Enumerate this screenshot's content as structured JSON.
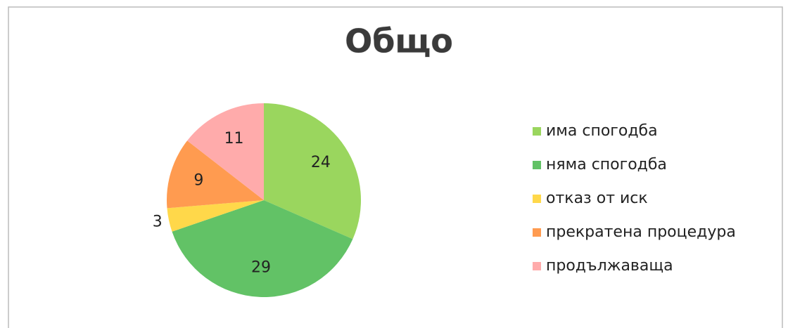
{
  "chart_data": {
    "type": "pie",
    "title": "Общо",
    "categories": [
      "има спогодба",
      "няма спогодба",
      "отказ от иск",
      "прекратена процедура",
      "продължаваща"
    ],
    "values": [
      24,
      29,
      3,
      9,
      11
    ],
    "colors": [
      "#9ad65e",
      "#62c266",
      "#ffd84a",
      "#ff9b50",
      "#ffabab"
    ],
    "legend": "right"
  }
}
